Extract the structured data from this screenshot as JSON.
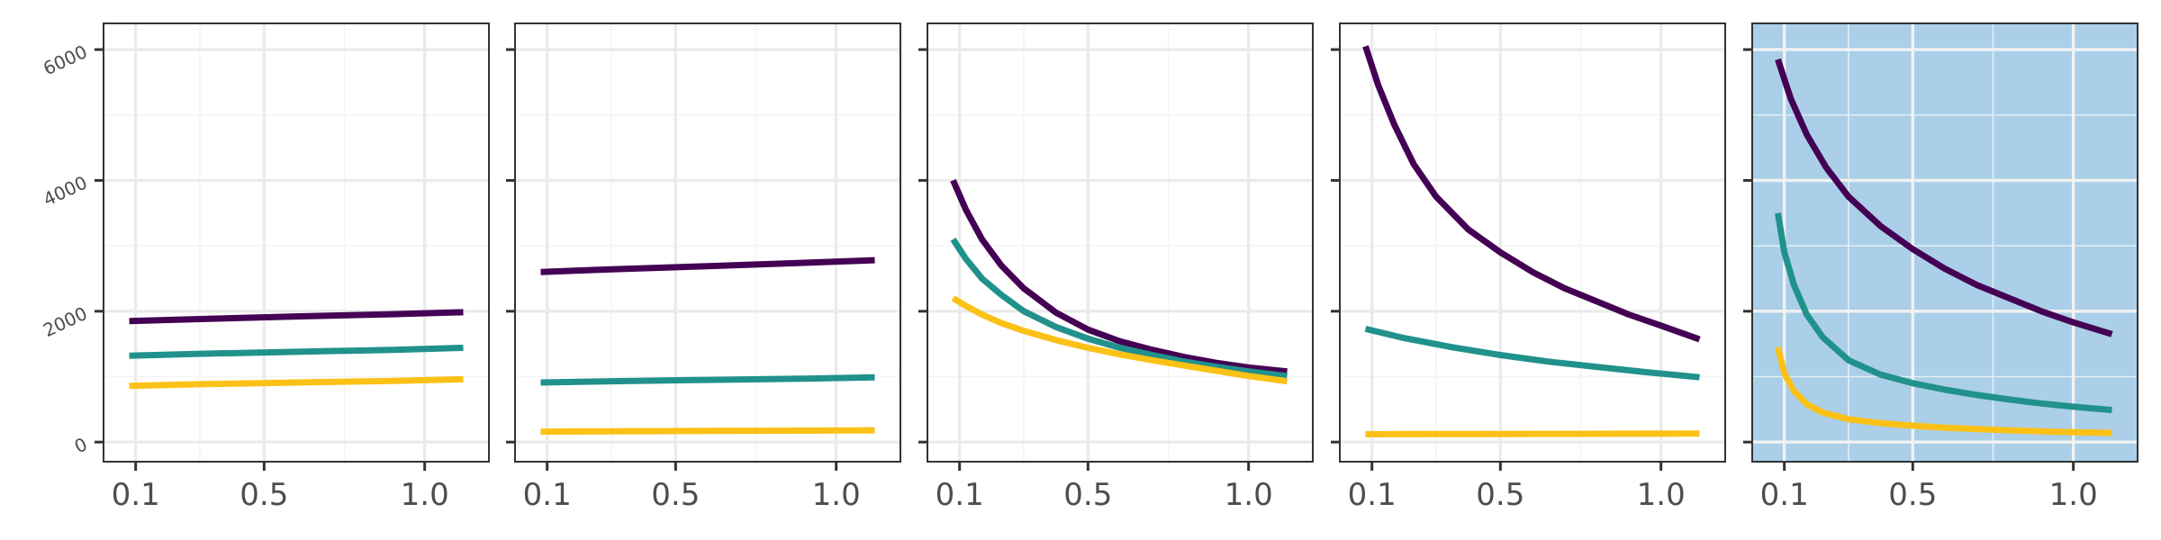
{
  "chart_data": {
    "type": "line",
    "layout": "five small-multiple panels sharing one y axis",
    "grid": true,
    "legend": "none",
    "xlim": [
      0.0,
      1.2
    ],
    "ylim": [
      -300,
      6400
    ],
    "x_ticks": [
      {
        "value": 0.1,
        "label": "0.1"
      },
      {
        "value": 0.5,
        "label": "0.5"
      },
      {
        "value": 1.0,
        "label": "1.0"
      }
    ],
    "x_minor_ticks": [
      0.3,
      0.75
    ],
    "y_ticks": [
      {
        "value": 0,
        "label": "0"
      },
      {
        "value": 2000,
        "label": "2000"
      },
      {
        "value": 4000,
        "label": "4000"
      },
      {
        "value": 6000,
        "label": "6000"
      }
    ],
    "y_minor_ticks": [
      1000,
      3000,
      5000
    ],
    "colors": {
      "purple": "#440154",
      "teal": "#21918c",
      "yellow": "#fbc117",
      "highlight_panel_background": "#abcfe8",
      "grid_major": "#ebebeb",
      "grid_minor": "#f4f4f4",
      "panel_border": "#333333",
      "tick_label": "#4d4d4d"
    },
    "panels": [
      {
        "highlighted": false,
        "series": [
          {
            "color": "purple",
            "x": [
              0.08,
              0.3,
              0.6,
              0.9,
              1.12
            ],
            "y": [
              1850,
              1880,
              1920,
              1955,
              1985
            ]
          },
          {
            "color": "teal",
            "x": [
              0.08,
              0.3,
              0.6,
              0.9,
              1.12
            ],
            "y": [
              1320,
              1350,
              1380,
              1410,
              1440
            ]
          },
          {
            "color": "yellow",
            "x": [
              0.08,
              0.3,
              0.6,
              0.9,
              1.12
            ],
            "y": [
              860,
              885,
              910,
              935,
              960
            ]
          }
        ]
      },
      {
        "highlighted": false,
        "series": [
          {
            "color": "purple",
            "x": [
              0.08,
              0.3,
              0.6,
              0.9,
              1.12
            ],
            "y": [
              2600,
              2640,
              2690,
              2740,
              2780
            ]
          },
          {
            "color": "teal",
            "x": [
              0.08,
              0.3,
              0.6,
              0.9,
              1.12
            ],
            "y": [
              910,
              930,
              950,
              970,
              990
            ]
          },
          {
            "color": "yellow",
            "x": [
              0.08,
              0.3,
              0.6,
              0.9,
              1.12
            ],
            "y": [
              160,
              165,
              170,
              175,
              180
            ]
          }
        ]
      },
      {
        "highlighted": false,
        "series": [
          {
            "color": "purple",
            "x": [
              0.08,
              0.12,
              0.17,
              0.23,
              0.3,
              0.4,
              0.5,
              0.6,
              0.7,
              0.8,
              0.9,
              1.0,
              1.12
            ],
            "y": [
              4000,
              3550,
              3100,
              2700,
              2350,
              1980,
              1720,
              1540,
              1410,
              1300,
              1210,
              1140,
              1080
            ]
          },
          {
            "color": "teal",
            "x": [
              0.08,
              0.12,
              0.17,
              0.23,
              0.3,
              0.4,
              0.5,
              0.6,
              0.7,
              0.8,
              0.9,
              1.0,
              1.12
            ],
            "y": [
              3100,
              2800,
              2500,
              2250,
              2000,
              1760,
              1580,
              1440,
              1330,
              1230,
              1150,
              1080,
              1010
            ]
          },
          {
            "color": "yellow",
            "x": [
              0.08,
              0.12,
              0.17,
              0.23,
              0.3,
              0.4,
              0.5,
              0.6,
              0.7,
              0.8,
              0.9,
              1.0,
              1.12
            ],
            "y": [
              2200,
              2080,
              1950,
              1820,
              1700,
              1560,
              1440,
              1340,
              1250,
              1170,
              1090,
              1010,
              930
            ]
          }
        ]
      },
      {
        "highlighted": false,
        "series": [
          {
            "color": "purple",
            "x": [
              0.08,
              0.12,
              0.17,
              0.23,
              0.3,
              0.4,
              0.5,
              0.6,
              0.7,
              0.8,
              0.9,
              1.0,
              1.12
            ],
            "y": [
              6050,
              5450,
              4850,
              4250,
              3750,
              3250,
              2900,
              2600,
              2350,
              2150,
              1950,
              1780,
              1570
            ]
          },
          {
            "color": "teal",
            "x": [
              0.08,
              0.2,
              0.35,
              0.5,
              0.65,
              0.8,
              0.95,
              1.12
            ],
            "y": [
              1730,
              1590,
              1450,
              1330,
              1230,
              1150,
              1070,
              990
            ]
          },
          {
            "color": "yellow",
            "x": [
              0.08,
              0.3,
              0.6,
              0.9,
              1.12
            ],
            "y": [
              120,
              122,
              125,
              128,
              130
            ]
          }
        ]
      },
      {
        "highlighted": true,
        "series": [
          {
            "color": "purple",
            "x": [
              0.08,
              0.12,
              0.17,
              0.23,
              0.3,
              0.4,
              0.5,
              0.6,
              0.7,
              0.8,
              0.9,
              1.0,
              1.12
            ],
            "y": [
              5850,
              5250,
              4700,
              4200,
              3750,
              3300,
              2950,
              2650,
              2400,
              2200,
              2000,
              1830,
              1650
            ]
          },
          {
            "color": "teal",
            "x": [
              0.08,
              0.1,
              0.13,
              0.17,
              0.22,
              0.3,
              0.4,
              0.5,
              0.6,
              0.7,
              0.8,
              0.9,
              1.0,
              1.12
            ],
            "y": [
              3500,
              2900,
              2400,
              1950,
              1600,
              1250,
              1030,
              900,
              800,
              720,
              650,
              590,
              540,
              490
            ]
          },
          {
            "color": "yellow",
            "x": [
              0.08,
              0.1,
              0.13,
              0.17,
              0.22,
              0.3,
              0.4,
              0.5,
              0.6,
              0.7,
              0.8,
              0.9,
              1.0,
              1.12
            ],
            "y": [
              1450,
              1050,
              780,
              580,
              450,
              350,
              290,
              250,
              220,
              200,
              180,
              165,
              150,
              140
            ]
          }
        ]
      }
    ]
  }
}
